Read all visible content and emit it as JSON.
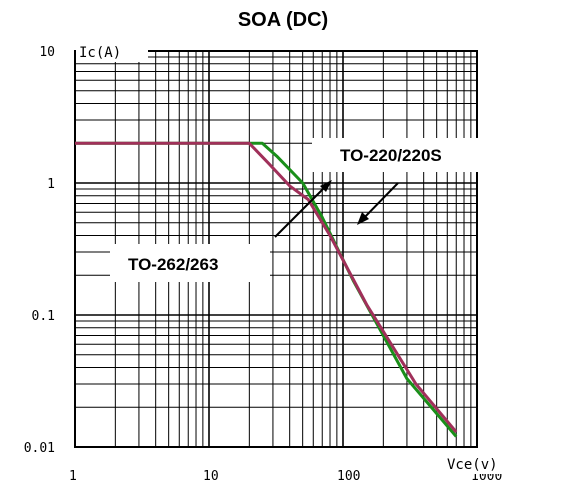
{
  "chart_data": {
    "type": "line",
    "title": "SOA (DC)",
    "xlabel": "Vce(v)",
    "ylabel": "Ic(A)",
    "xscale": "log",
    "yscale": "log",
    "xlim": [
      1,
      1000
    ],
    "ylim": [
      0.01,
      10
    ],
    "grid": true,
    "x_tick_labels": [
      "1",
      "10",
      "100",
      "1000"
    ],
    "y_tick_labels": [
      "10",
      "1",
      "0.1",
      "0.01"
    ],
    "series": [
      {
        "name": "TO-220/220S",
        "color": "#1a8f1a",
        "points": [
          [
            1,
            2
          ],
          [
            20,
            2
          ],
          [
            25,
            2
          ],
          [
            32,
            1.6
          ],
          [
            50,
            1.0
          ],
          [
            70,
            0.55
          ],
          [
            120,
            0.18
          ],
          [
            300,
            0.033
          ],
          [
            700,
            0.012
          ]
        ]
      },
      {
        "name": "TO-262/263",
        "color": "#a0305a",
        "points": [
          [
            1,
            2
          ],
          [
            20,
            2
          ],
          [
            28,
            1.4
          ],
          [
            40,
            0.95
          ],
          [
            55,
            0.75
          ],
          [
            80,
            0.4
          ],
          [
            150,
            0.12
          ],
          [
            350,
            0.03
          ],
          [
            700,
            0.013
          ]
        ]
      }
    ]
  }
}
